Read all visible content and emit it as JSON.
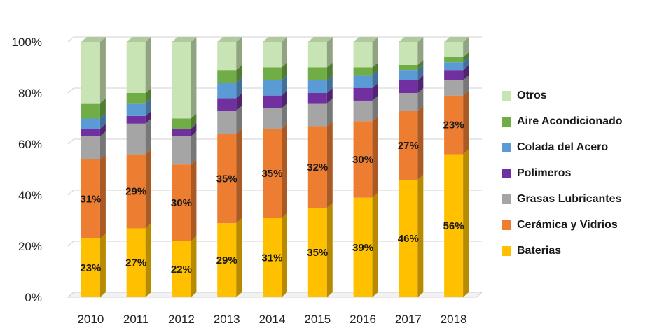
{
  "chart_data": {
    "type": "bar",
    "stacked": true,
    "percent": true,
    "categories": [
      "2010",
      "2011",
      "2012",
      "2013",
      "2014",
      "2015",
      "2016",
      "2017",
      "2018"
    ],
    "ylim": [
      0,
      100
    ],
    "yticks": [
      "0%",
      "20%",
      "40%",
      "60%",
      "80%",
      "100%"
    ],
    "legend_position": "right",
    "series": [
      {
        "name": "Baterias",
        "color": "#FFC000",
        "values": [
          23,
          27,
          22,
          29,
          31,
          35,
          39,
          46,
          56
        ]
      },
      {
        "name": "Cerámica y Vidrios",
        "color": "#ED7D31",
        "values": [
          31,
          29,
          30,
          35,
          35,
          32,
          30,
          27,
          23
        ]
      },
      {
        "name": "Grasas Lubricantes",
        "color": "#A5A5A5",
        "values": [
          9,
          12,
          11,
          9,
          8,
          9,
          8,
          7,
          6
        ]
      },
      {
        "name": "Polimeros",
        "color": "#7030A0",
        "values": [
          3,
          3,
          3,
          5,
          5,
          4,
          5,
          5,
          4
        ]
      },
      {
        "name": "Colada del Acero",
        "color": "#5B9BD5",
        "values": [
          4,
          5,
          0,
          6,
          6,
          5,
          5,
          4,
          3
        ]
      },
      {
        "name": "Aire Acondicionado",
        "color": "#70AD47",
        "values": [
          6,
          4,
          4,
          5,
          5,
          5,
          3,
          2,
          2
        ]
      },
      {
        "name": "Otros",
        "color": "#C9E4B4",
        "values": [
          24,
          20,
          30,
          11,
          10,
          10,
          10,
          9,
          6
        ]
      }
    ],
    "data_labels": {
      "Baterias": [
        "23%",
        "27%",
        "22%",
        "29%",
        "31%",
        "35%",
        "39%",
        "46%",
        "56%"
      ],
      "Cerámica y Vidrios": [
        "31%",
        "29%",
        "30%",
        "35%",
        "35%",
        "32%",
        "30%",
        "27%",
        "23%"
      ]
    }
  }
}
